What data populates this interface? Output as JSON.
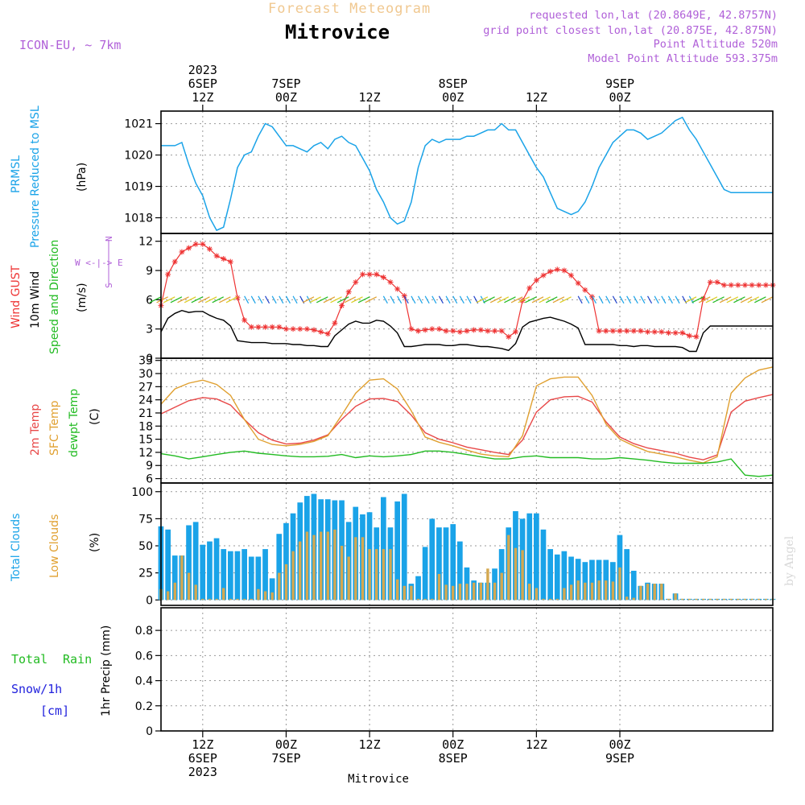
{
  "header": {
    "top_title": "Forecast Meteogram",
    "city": "Mitrovice",
    "model": "ICON-EU, ~ 7km",
    "requested": "requested lon,lat (20.8649E, 42.8757N)",
    "grid_point": "grid point closest lon,lat (20.875E, 42.875N)",
    "point_alt": "Point Altitude 520m",
    "model_alt": "Model Point Altitude 593.375m",
    "watermark": "by Angel",
    "bottom_label": "Mitrovice"
  },
  "time_axis": {
    "start_hour": 6,
    "end_hour": 94,
    "ticks": [
      {
        "hour": 12,
        "top": [
          "2023",
          "6SEP",
          "12Z"
        ],
        "bottom": [
          "12Z",
          "6SEP",
          "2023"
        ]
      },
      {
        "hour": 24,
        "top": [
          "7SEP",
          "00Z"
        ],
        "bottom": [
          "00Z",
          "7SEP"
        ]
      },
      {
        "hour": 36,
        "top": [
          "12Z"
        ],
        "bottom": [
          "12Z"
        ]
      },
      {
        "hour": 48,
        "top": [
          "8SEP",
          "00Z"
        ],
        "bottom": [
          "00Z",
          "8SEP"
        ]
      },
      {
        "hour": 60,
        "top": [
          "12Z"
        ],
        "bottom": [
          "12Z"
        ]
      },
      {
        "hour": 72,
        "top": [
          "9SEP",
          "00Z"
        ],
        "bottom": [
          "00Z",
          "9SEP"
        ]
      }
    ]
  },
  "panels": {
    "pressure": {
      "labels": [
        "PRMSL",
        "Pressure Reduced to MSL",
        "(hPa)"
      ],
      "color": "#1aa3e8",
      "ylim": [
        1017.5,
        1021.4
      ],
      "ticks": [
        1018,
        1019,
        1020,
        1021
      ]
    },
    "wind": {
      "labels": [
        "Wind GUST",
        "10m Wind",
        "Speed and Direction",
        "(m/s)"
      ],
      "compass": [
        "N",
        "W <-|-> E",
        "S"
      ],
      "ylim": [
        0,
        12.8
      ],
      "ticks": [
        0,
        3,
        6,
        9,
        12
      ],
      "gust_color": "#ee3333",
      "wind_color": "#000000"
    },
    "temperature": {
      "labels": [
        "2m Temp",
        "SFC Temp",
        "dewpt Temp",
        "(C)"
      ],
      "ylim": [
        5,
        33.5
      ],
      "ticks": [
        6,
        9,
        12,
        15,
        18,
        21,
        24,
        27,
        30,
        33
      ],
      "colors": [
        "#e84848",
        "#e0a030",
        "#22bb22"
      ]
    },
    "clouds": {
      "labels": [
        "Total Clouds",
        "Low Clouds",
        "(%)"
      ],
      "ylim": [
        -5,
        108
      ],
      "ticks": [
        0,
        25,
        50,
        75,
        100
      ],
      "total_color": "#1aa3e8",
      "low_color": "#d4a850"
    },
    "precip": {
      "labels": [
        "Total",
        "Rain",
        "Snow/1h",
        "[cm]",
        "1hr Precip (mm)"
      ],
      "ylim": [
        0,
        0.98
      ],
      "ticks": [
        0,
        0.2,
        0.4,
        0.6,
        0.8
      ],
      "tick_labels": [
        "0",
        "0.2",
        "0.4",
        "0.6",
        "0.8"
      ]
    }
  },
  "chart_data": [
    {
      "type": "line",
      "title": "PRMSL Pressure Reduced to MSL",
      "ylabel": "(hPa)",
      "x": [
        6,
        7,
        8,
        9,
        10,
        11,
        12,
        13,
        14,
        15,
        16,
        17,
        18,
        19,
        20,
        21,
        22,
        23,
        24,
        25,
        26,
        27,
        28,
        29,
        30,
        31,
        32,
        33,
        34,
        35,
        36,
        37,
        38,
        39,
        40,
        41,
        42,
        43,
        44,
        45,
        46,
        47,
        48,
        49,
        50,
        51,
        52,
        53,
        54,
        55,
        56,
        57,
        58,
        59,
        60,
        61,
        62,
        63,
        64,
        65,
        66,
        67,
        68,
        69,
        70,
        71,
        72,
        73,
        74,
        75,
        76,
        77,
        78,
        79,
        80,
        81,
        82,
        83,
        84,
        85,
        86,
        87,
        88,
        89,
        90,
        91,
        92,
        93,
        94
      ],
      "values": [
        1020.3,
        1020.3,
        1020.3,
        1020.4,
        1019.7,
        1019.1,
        1018.7,
        1018.0,
        1017.6,
        1017.7,
        1018.6,
        1019.6,
        1020.0,
        1020.1,
        1020.6,
        1021.0,
        1020.9,
        1020.6,
        1020.3,
        1020.3,
        1020.2,
        1020.1,
        1020.3,
        1020.4,
        1020.2,
        1020.5,
        1020.6,
        1020.4,
        1020.3,
        1019.9,
        1019.5,
        1018.9,
        1018.5,
        1018.0,
        1017.8,
        1017.9,
        1018.5,
        1019.6,
        1020.3,
        1020.5,
        1020.4,
        1020.5,
        1020.5,
        1020.5,
        1020.6,
        1020.6,
        1020.7,
        1020.8,
        1020.8,
        1021.0,
        1020.8,
        1020.8,
        1020.4,
        1020.0,
        1019.6,
        1019.3,
        1018.8,
        1018.3,
        1018.2,
        1018.1,
        1018.2,
        1018.5,
        1019.0,
        1019.6,
        1020.0,
        1020.4,
        1020.6,
        1020.8,
        1020.8,
        1020.7,
        1020.5,
        1020.6,
        1020.7,
        1020.9,
        1021.1,
        1021.2,
        1020.8,
        1020.5,
        1020.1,
        1019.7,
        1019.3,
        1018.9,
        1018.8,
        1018.8,
        1018.8,
        1018.8,
        1018.8,
        1018.8,
        1018.8
      ],
      "ylim": [
        1017.5,
        1021.4
      ]
    },
    {
      "type": "line",
      "title": "Wind GUST / 10m Wind Speed",
      "ylabel": "(m/s)",
      "ylim": [
        0,
        12.8
      ],
      "x": [
        6,
        7,
        8,
        9,
        10,
        11,
        12,
        13,
        14,
        15,
        16,
        17,
        18,
        19,
        20,
        21,
        22,
        23,
        24,
        25,
        26,
        27,
        28,
        29,
        30,
        31,
        32,
        33,
        34,
        35,
        36,
        37,
        38,
        39,
        40,
        41,
        42,
        43,
        44,
        45,
        46,
        47,
        48,
        49,
        50,
        51,
        52,
        53,
        54,
        55,
        56,
        57,
        58,
        59,
        60,
        61,
        62,
        63,
        64,
        65,
        66,
        67,
        68,
        69,
        70,
        71,
        72,
        73,
        74,
        75,
        76,
        77,
        78,
        79,
        80,
        81,
        82,
        83,
        84,
        85,
        86,
        87,
        88,
        89,
        90,
        91,
        92,
        93,
        94
      ],
      "series": [
        {
          "name": "Wind GUST",
          "values": [
            5.4,
            8.6,
            9.9,
            10.9,
            11.3,
            11.7,
            11.7,
            11.2,
            10.5,
            10.2,
            9.9,
            6.2,
            3.9,
            3.2,
            3.2,
            3.2,
            3.2,
            3.2,
            3.0,
            3.0,
            3.0,
            3.0,
            2.9,
            2.7,
            2.5,
            3.6,
            5.4,
            6.8,
            7.8,
            8.6,
            8.6,
            8.6,
            8.3,
            7.8,
            7.1,
            6.4,
            3.0,
            2.8,
            2.9,
            3.0,
            3.0,
            2.8,
            2.8,
            2.7,
            2.8,
            2.9,
            2.9,
            2.8,
            2.8,
            2.8,
            2.2,
            2.7,
            5.9,
            7.2,
            8.0,
            8.5,
            8.9,
            9.1,
            9.0,
            8.5,
            7.7,
            7.0,
            6.3,
            2.8,
            2.8,
            2.8,
            2.8,
            2.8,
            2.8,
            2.8,
            2.7,
            2.7,
            2.7,
            2.6,
            2.6,
            2.6,
            2.3,
            2.2,
            6.1,
            7.8,
            7.8,
            7.5,
            7.5,
            7.5,
            7.5,
            7.5,
            7.5,
            7.5,
            7.5
          ]
        },
        {
          "name": "10m Wind",
          "values": [
            2.7,
            4.1,
            4.6,
            4.9,
            4.7,
            4.8,
            4.8,
            4.4,
            4.1,
            3.9,
            3.3,
            1.8,
            1.7,
            1.6,
            1.6,
            1.6,
            1.5,
            1.5,
            1.5,
            1.4,
            1.4,
            1.3,
            1.3,
            1.2,
            1.2,
            2.3,
            2.9,
            3.5,
            3.8,
            3.6,
            3.6,
            3.9,
            3.8,
            3.3,
            2.6,
            1.2,
            1.2,
            1.3,
            1.4,
            1.4,
            1.4,
            1.3,
            1.3,
            1.4,
            1.4,
            1.3,
            1.2,
            1.2,
            1.1,
            1.0,
            0.8,
            1.5,
            3.2,
            3.7,
            3.9,
            4.1,
            4.2,
            4.0,
            3.8,
            3.5,
            3.1,
            1.4,
            1.4,
            1.4,
            1.4,
            1.4,
            1.3,
            1.3,
            1.2,
            1.3,
            1.3,
            1.2,
            1.2,
            1.2,
            1.2,
            1.1,
            0.7,
            0.7,
            2.6,
            3.3,
            3.3,
            3.3,
            3.3,
            3.3,
            3.3,
            3.3,
            3.3,
            3.3,
            3.3
          ]
        }
      ]
    },
    {
      "type": "line",
      "title": "2m Temp / SFC Temp / dewpt Temp",
      "ylabel": "(C)",
      "ylim": [
        5,
        33.5
      ],
      "x": [
        6,
        8,
        10,
        12,
        14,
        16,
        18,
        20,
        22,
        24,
        26,
        28,
        30,
        32,
        34,
        36,
        38,
        40,
        42,
        44,
        46,
        48,
        50,
        52,
        54,
        56,
        58,
        60,
        62,
        64,
        66,
        68,
        70,
        72,
        74,
        76,
        78,
        80,
        82,
        84,
        86,
        88,
        90,
        92,
        94
      ],
      "series": [
        {
          "name": "2m Temp",
          "values": [
            20.8,
            22.3,
            23.8,
            24.5,
            24.2,
            22.8,
            19.5,
            16.5,
            14.8,
            13.9,
            14.1,
            14.8,
            16.0,
            19.5,
            22.5,
            24.2,
            24.3,
            23.6,
            20.5,
            16.5,
            15.0,
            14.2,
            13.2,
            12.6,
            12.0,
            11.5,
            14.8,
            21.2,
            24.0,
            24.7,
            24.8,
            23.5,
            19.0,
            15.5,
            14.0,
            13.0,
            12.4,
            11.8,
            10.9,
            10.3,
            11.4,
            21.2,
            23.7,
            24.5,
            25.2
          ]
        },
        {
          "name": "SFC Temp",
          "values": [
            23.0,
            26.5,
            27.8,
            28.5,
            27.5,
            25.0,
            19.5,
            15.0,
            13.8,
            13.5,
            13.8,
            14.5,
            15.8,
            20.5,
            25.5,
            28.5,
            28.8,
            26.5,
            21.5,
            15.5,
            14.3,
            13.5,
            12.5,
            11.6,
            11.2,
            11.0,
            15.8,
            27.2,
            28.8,
            29.2,
            29.2,
            25.0,
            18.5,
            15.0,
            13.5,
            12.2,
            11.6,
            11.0,
            10.2,
            9.6,
            11.0,
            25.5,
            29.0,
            30.8,
            31.5
          ]
        },
        {
          "name": "dewpt Temp",
          "values": [
            11.7,
            11.2,
            10.5,
            11.0,
            11.5,
            12.0,
            12.3,
            11.8,
            11.5,
            11.2,
            11.0,
            11.0,
            11.1,
            11.5,
            10.8,
            11.2,
            11.0,
            11.2,
            11.5,
            12.3,
            12.3,
            12.0,
            11.5,
            11.0,
            10.5,
            10.5,
            11.0,
            11.2,
            10.8,
            10.8,
            10.8,
            10.5,
            10.5,
            10.8,
            10.5,
            10.2,
            9.8,
            9.5,
            9.5,
            9.5,
            9.8,
            10.5,
            6.8,
            6.5,
            6.8
          ]
        }
      ]
    },
    {
      "type": "bar",
      "title": "Total Clouds / Low Clouds",
      "ylabel": "(%)",
      "ylim": [
        -5,
        108
      ],
      "x": [
        6,
        7,
        8,
        9,
        10,
        11,
        12,
        13,
        14,
        15,
        16,
        17,
        18,
        19,
        20,
        21,
        22,
        23,
        24,
        25,
        26,
        27,
        28,
        29,
        30,
        31,
        32,
        33,
        34,
        35,
        36,
        37,
        38,
        39,
        40,
        41,
        42,
        43,
        44,
        45,
        46,
        47,
        48,
        49,
        50,
        51,
        52,
        53,
        54,
        55,
        56,
        57,
        58,
        59,
        60,
        61,
        62,
        63,
        64,
        65,
        66,
        67,
        68,
        69,
        70,
        71,
        72,
        73,
        74,
        75,
        76,
        77,
        78,
        79,
        80,
        81,
        82,
        83,
        84,
        85,
        86,
        87,
        88,
        89,
        90,
        91,
        92,
        93,
        94
      ],
      "series": [
        {
          "name": "Total Clouds",
          "values": [
            68,
            65,
            41,
            41,
            69,
            72,
            51,
            54,
            57,
            47,
            45,
            45,
            47,
            40,
            40,
            47,
            20,
            61,
            71,
            80,
            90,
            96,
            98,
            93,
            93,
            92,
            92,
            72,
            86,
            79,
            81,
            67,
            95,
            67,
            91,
            98,
            15,
            22,
            49,
            75,
            67,
            67,
            70,
            54,
            30,
            18,
            16,
            16,
            29,
            47,
            67,
            82,
            75,
            80,
            80,
            65,
            47,
            42,
            45,
            40,
            38,
            35,
            37,
            37,
            37,
            35,
            60,
            47,
            27,
            13,
            16,
            15,
            15,
            1,
            6,
            1,
            1,
            1,
            1,
            1,
            1,
            1,
            1,
            1,
            1,
            1,
            1,
            1,
            1
          ]
        },
        {
          "name": "Low Clouds",
          "values": [
            10,
            8,
            16,
            41,
            25,
            14,
            1,
            1,
            1,
            11,
            1,
            1,
            1,
            1,
            10,
            8,
            7,
            25,
            33,
            45,
            54,
            63,
            60,
            63,
            63,
            65,
            50,
            40,
            58,
            58,
            47,
            47,
            47,
            47,
            19,
            13,
            13,
            1,
            1,
            1,
            24,
            14,
            13,
            15,
            15,
            16,
            16,
            29,
            16,
            25,
            60,
            48,
            46,
            15,
            11,
            1,
            1,
            1,
            11,
            14,
            18,
            16,
            16,
            18,
            18,
            17,
            30,
            3,
            2,
            13,
            15,
            15,
            15,
            1,
            6,
            1,
            1,
            1,
            1,
            1,
            1,
            1,
            1,
            1,
            1,
            1,
            1,
            1,
            1
          ]
        }
      ]
    },
    {
      "type": "bar",
      "title": "1hr Precip (mm)",
      "ylabel": "1hr Precip (mm)",
      "ylim": [
        0,
        0.98
      ],
      "x": [
        6,
        94
      ],
      "series": [
        {
          "name": "Total Rain",
          "values": [
            0,
            0
          ]
        }
      ]
    }
  ]
}
